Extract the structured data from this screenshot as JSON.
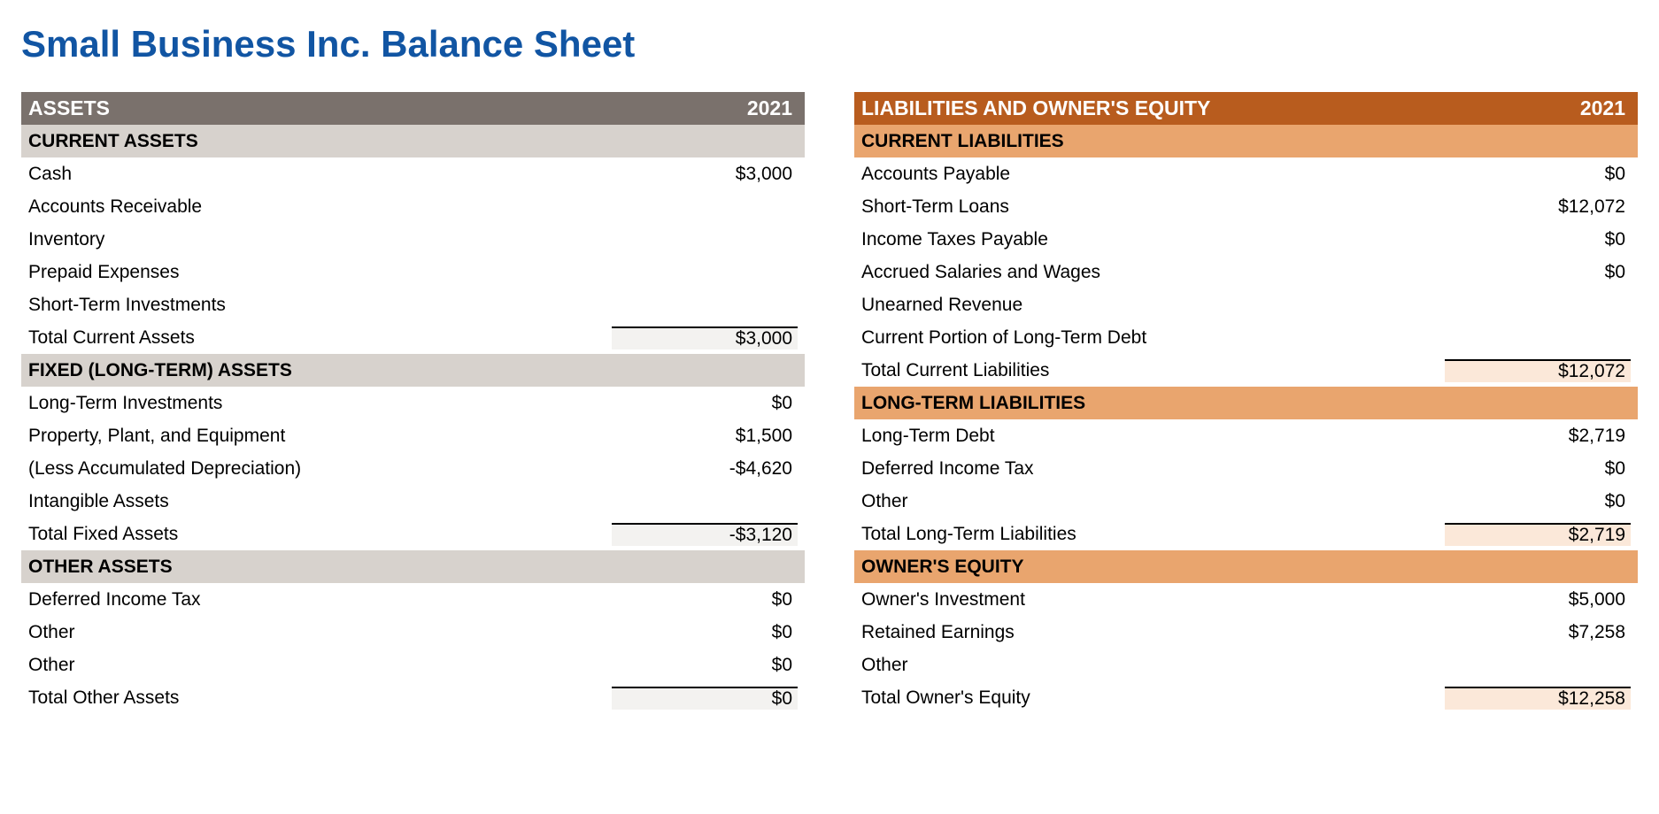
{
  "title": "Small Business Inc. Balance Sheet",
  "year": "2021",
  "colors": {
    "title": "#1155a3",
    "assets_header_bg": "#7a716c",
    "assets_sub_bg": "#d7d2cd",
    "assets_subtotal_bg": "#f3f2f0",
    "liab_header_bg": "#b85c1e",
    "liab_sub_bg": "#e9a56e",
    "liab_subtotal_bg": "#fbe8d9",
    "header_text": "#ffffff",
    "body_text": "#000000",
    "border_top": "#000000"
  },
  "assets": {
    "header": "ASSETS",
    "current": {
      "title": "CURRENT ASSETS",
      "rows": [
        {
          "label": "Cash",
          "value": "$3,000"
        },
        {
          "label": "Accounts Receivable",
          "value": ""
        },
        {
          "label": "Inventory",
          "value": ""
        },
        {
          "label": "Prepaid Expenses",
          "value": ""
        },
        {
          "label": "Short-Term Investments",
          "value": ""
        }
      ],
      "total_label": "Total Current Assets",
      "total_value": "$3,000"
    },
    "fixed": {
      "title": "FIXED (LONG-TERM) ASSETS",
      "rows": [
        {
          "label": "Long-Term Investments",
          "value": "$0"
        },
        {
          "label": "Property, Plant, and Equipment",
          "value": "$1,500"
        },
        {
          "label": "(Less Accumulated Depreciation)",
          "value": "-$4,620"
        },
        {
          "label": "Intangible Assets",
          "value": ""
        }
      ],
      "total_label": "Total Fixed Assets",
      "total_value": "-$3,120"
    },
    "other": {
      "title": "OTHER ASSETS",
      "rows": [
        {
          "label": "Deferred Income Tax",
          "value": "$0"
        },
        {
          "label": "Other",
          "value": "$0"
        },
        {
          "label": "Other",
          "value": "$0"
        }
      ],
      "total_label": "Total Other Assets",
      "total_value": "$0"
    }
  },
  "liabilities": {
    "header": "LIABILITIES AND OWNER'S EQUITY",
    "current": {
      "title": "CURRENT LIABILITIES",
      "rows": [
        {
          "label": "Accounts Payable",
          "value": "$0"
        },
        {
          "label": "Short-Term Loans",
          "value": "$12,072"
        },
        {
          "label": "Income Taxes Payable",
          "value": "$0"
        },
        {
          "label": "Accrued Salaries and Wages",
          "value": "$0"
        },
        {
          "label": "Unearned Revenue",
          "value": ""
        },
        {
          "label": "Current Portion of Long-Term Debt",
          "value": ""
        }
      ],
      "total_label": "Total Current Liabilities",
      "total_value": "$12,072"
    },
    "longterm": {
      "title": "LONG-TERM LIABILITIES",
      "rows": [
        {
          "label": "Long-Term Debt",
          "value": "$2,719"
        },
        {
          "label": "Deferred Income Tax",
          "value": "$0"
        },
        {
          "label": "Other",
          "value": "$0"
        }
      ],
      "total_label": "Total Long-Term Liabilities",
      "total_value": "$2,719"
    },
    "equity": {
      "title": "OWNER'S EQUITY",
      "rows": [
        {
          "label": "Owner's Investment",
          "value": "$5,000"
        },
        {
          "label": "Retained Earnings",
          "value": "$7,258"
        },
        {
          "label": "Other",
          "value": ""
        }
      ],
      "total_label": "Total Owner's Equity",
      "total_value": "$12,258"
    }
  }
}
